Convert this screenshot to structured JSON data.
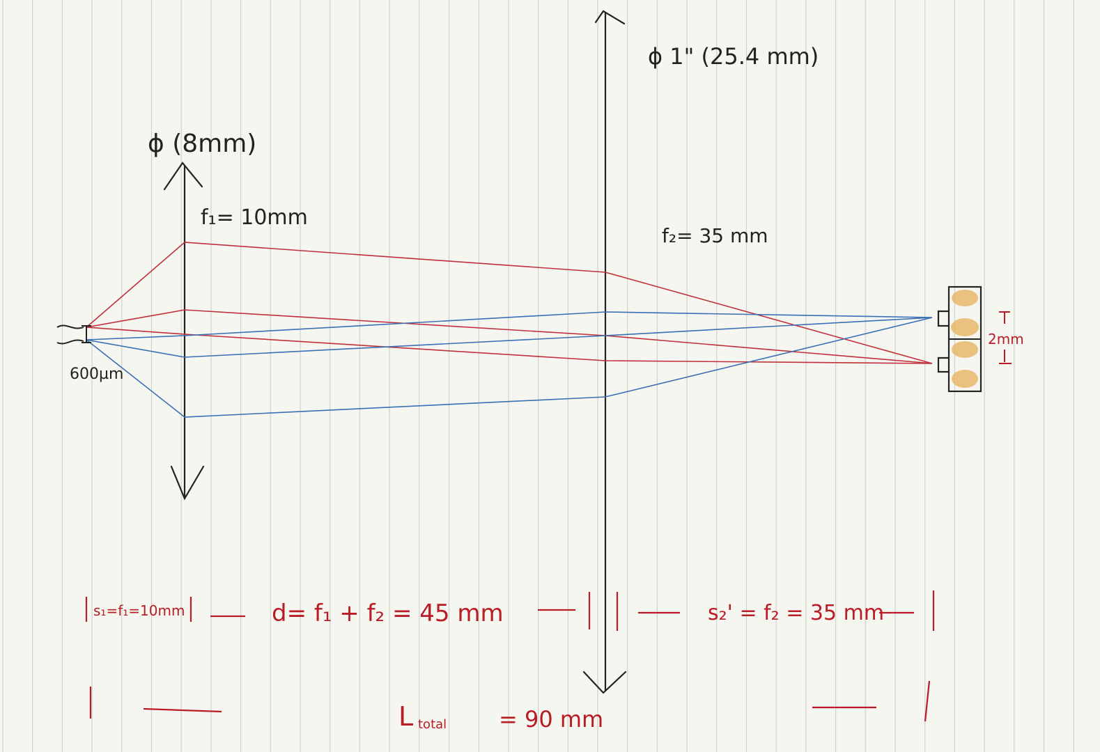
{
  "labels": {
    "lens1_diameter": "ϕ (8mm)",
    "lens1_focal": "f₁= 10mm",
    "lens2_diameter": "ϕ 1\" (25.4 mm)",
    "lens2_focal": "f₂= 35 mm",
    "source_size": "600µm",
    "image_size": "2mm"
  },
  "dimensions": {
    "s1": "s₁=f₁=10mm",
    "d": "d= f₁ + f₂ = 45 mm",
    "s2p": "s₂' = f₂ = 35 mm",
    "total": "L",
    "total_sub": "total",
    "total_value": "= 90 mm"
  },
  "colors": {
    "red_ray": "#c0303a",
    "blue_ray": "#3a6fb5",
    "ink": "#222222",
    "dim_ink": "#b81c25",
    "paper": "#f6f6f1",
    "grid_line": "#cfcfcf",
    "sensor_fill": "#e8b464"
  }
}
